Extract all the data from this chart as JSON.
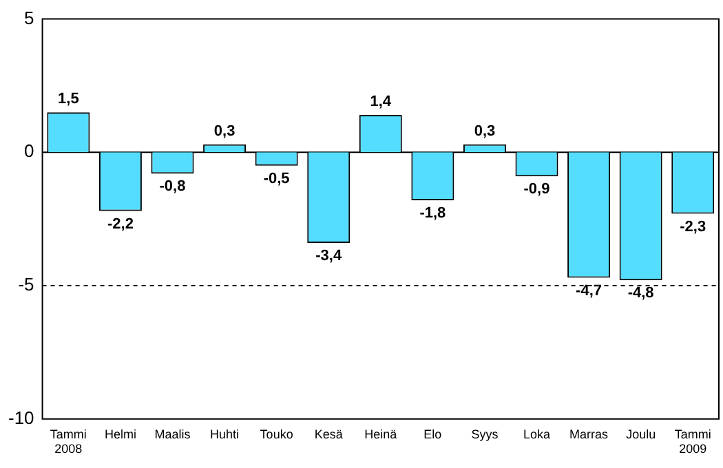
{
  "chart_data": {
    "type": "bar",
    "categories": [
      "Tammi\n2008",
      "Helmi",
      "Maalis",
      "Huhti",
      "Touko",
      "Kesä",
      "Heinä",
      "Elo",
      "Syys",
      "Loka",
      "Marras",
      "Joulu",
      "Tammi\n2009"
    ],
    "values": [
      1.5,
      -2.2,
      -0.8,
      0.3,
      -0.5,
      -3.4,
      1.4,
      -1.8,
      0.3,
      -0.9,
      -4.7,
      -4.8,
      -2.3
    ],
    "value_labels": [
      "1,5",
      "-2,2",
      "-0,8",
      "0,3",
      "-0,5",
      "-3,4",
      "1,4",
      "-1,8",
      "0,3",
      "-0,9",
      "-4,7",
      "-4,8",
      "-2,3"
    ],
    "color": "#55ddff",
    "ylim": [
      -10,
      5
    ],
    "yticks": [
      -10,
      -5,
      0,
      5
    ],
    "ref_lines": [
      {
        "axis": "y",
        "value": -5,
        "line_style": "dashed",
        "color": "#000000"
      }
    ],
    "grid": false,
    "legend": false
  }
}
